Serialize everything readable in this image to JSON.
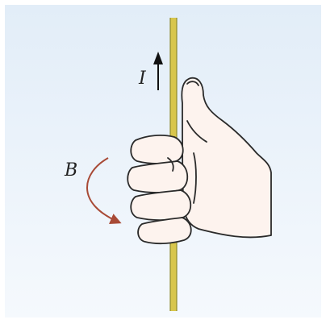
{
  "figure": {
    "current_label": "I",
    "field_label": "B"
  },
  "colors": {
    "background_top": "#e4eef8",
    "background_bottom": "#f6fafd",
    "wire_fill": "#d8c64c",
    "wire_edge": "#8f8a2a",
    "skin": "#fdf3ee",
    "outline": "#2a2a2a",
    "arrow_current": "#111111",
    "arrow_field": "#a84a36"
  }
}
